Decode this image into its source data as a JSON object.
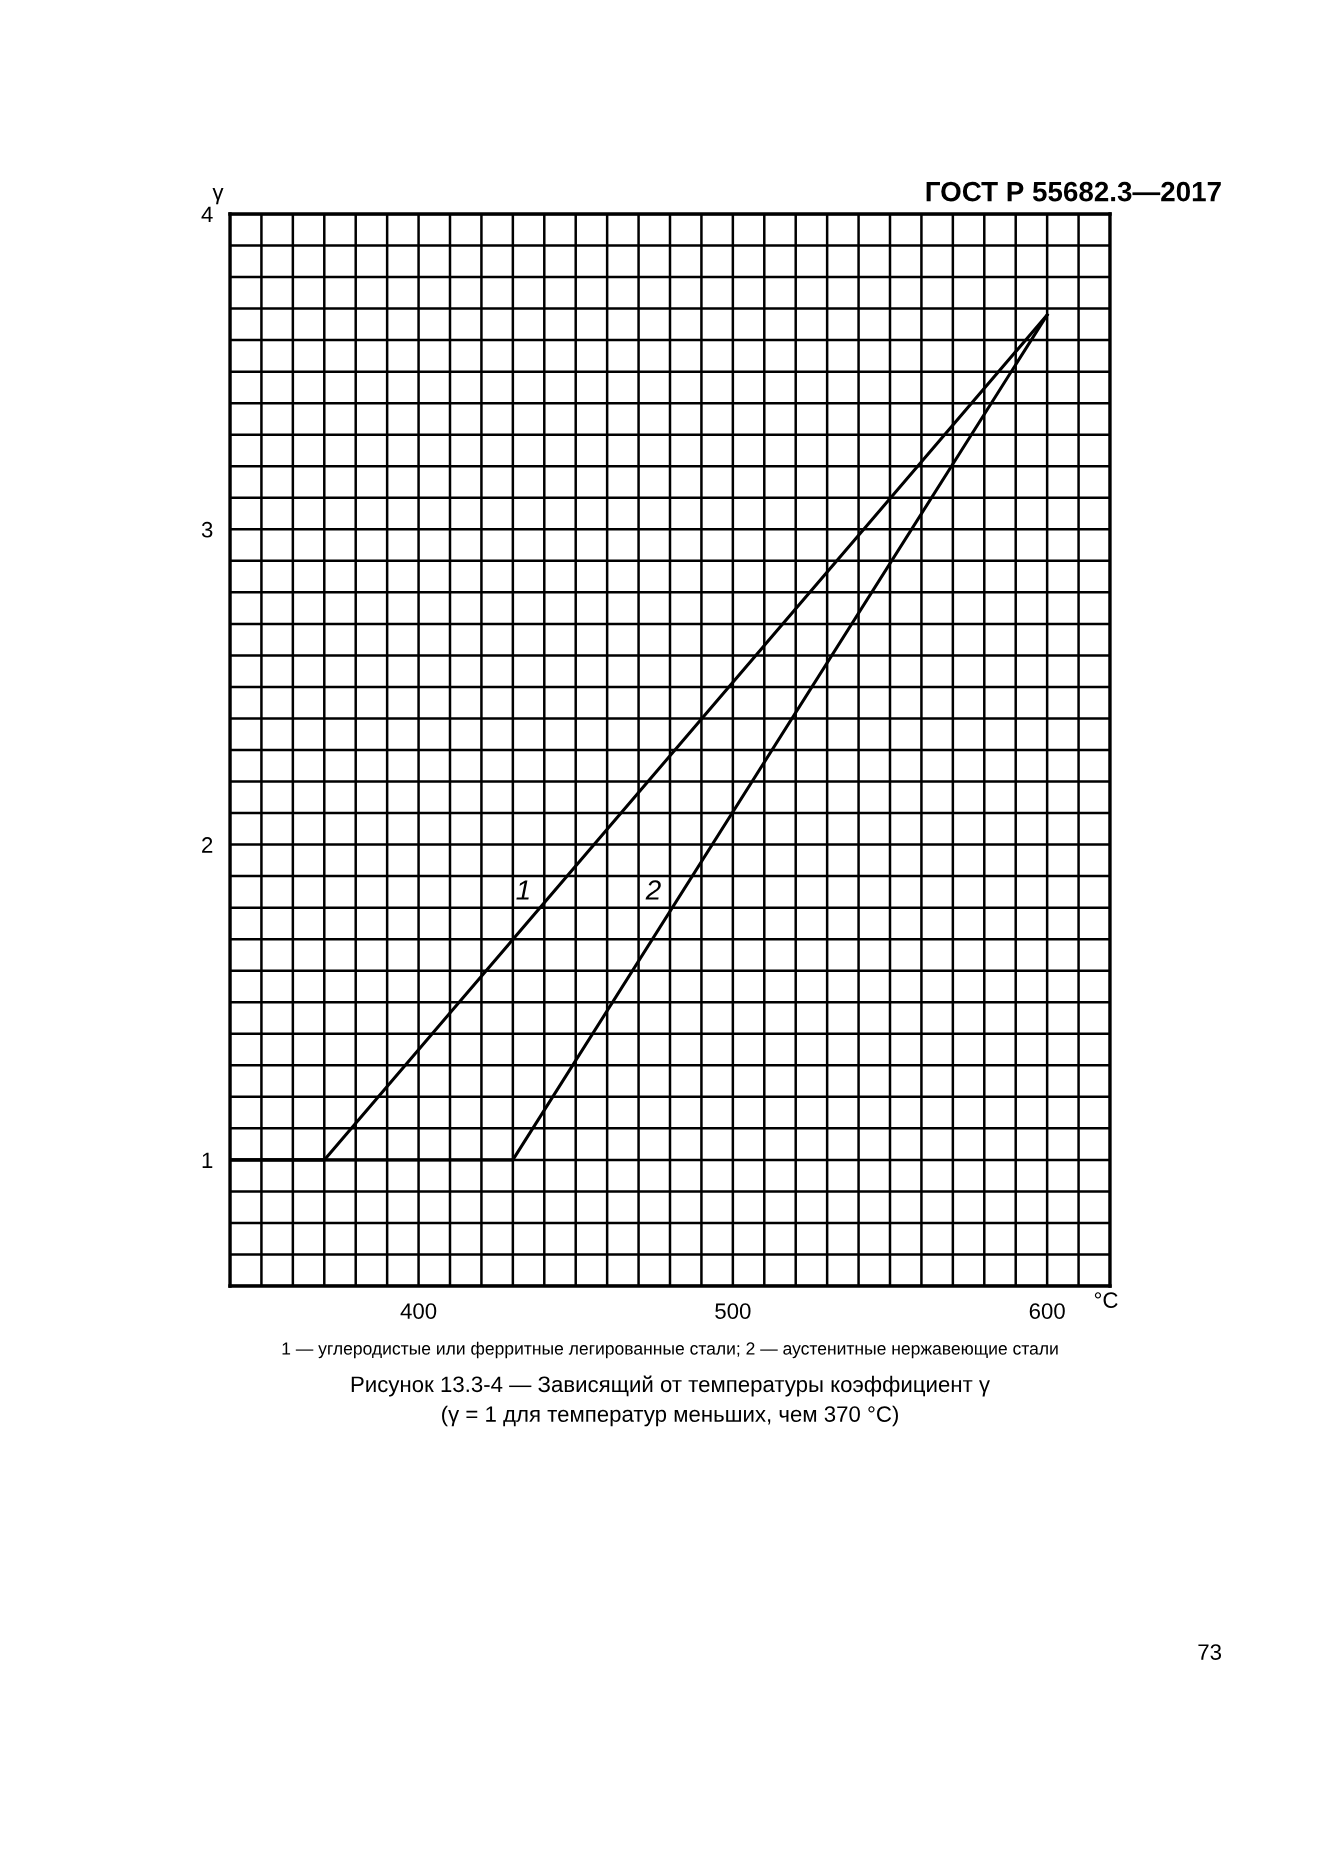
{
  "chart_data": {
    "type": "line",
    "title": "Рисунок 13.3-4 — Зависящий от температуры коэффициент γ",
    "subtitle": "(γ = 1 для температур меньших, чем 370 °C)",
    "xlabel": "°C",
    "ylabel": "γ",
    "series": [
      {
        "name": "1",
        "color": "#000000",
        "x": [
          340,
          370,
          600
        ],
        "values": [
          1,
          1,
          3.68
        ]
      },
      {
        "name": "2",
        "color": "#000000",
        "x": [
          340,
          430,
          600
        ],
        "values": [
          1,
          1,
          3.68
        ]
      }
    ],
    "xlim": [
      340,
      620
    ],
    "ylim": [
      0.6,
      4
    ],
    "xticks": [
      {
        "value": 340,
        "label": null
      },
      {
        "value": 350,
        "label": null
      },
      {
        "value": 360,
        "label": null
      },
      {
        "value": 370,
        "label": null
      },
      {
        "value": 380,
        "label": null
      },
      {
        "value": 390,
        "label": null
      },
      400,
      {
        "value": 410,
        "label": null
      },
      {
        "value": 420,
        "label": null
      },
      {
        "value": 430,
        "label": null
      },
      {
        "value": 440,
        "label": null
      },
      {
        "value": 450,
        "label": null
      },
      {
        "value": 460,
        "label": null
      },
      {
        "value": 470,
        "label": null
      },
      {
        "value": 480,
        "label": null
      },
      {
        "value": 490,
        "label": null
      },
      500,
      {
        "value": 510,
        "label": null
      },
      {
        "value": 520,
        "label": null
      },
      {
        "value": 530,
        "label": null
      },
      {
        "value": 540,
        "label": null
      },
      {
        "value": 550,
        "label": null
      },
      {
        "value": 560,
        "label": null
      },
      {
        "value": 570,
        "label": null
      },
      {
        "value": 580,
        "label": null
      },
      {
        "value": 590,
        "label": null
      },
      600,
      {
        "value": 610,
        "label": null
      },
      {
        "value": 620,
        "label": null
      }
    ],
    "yticks": [
      {
        "value": 0.6,
        "label": null
      },
      {
        "value": 0.7,
        "label": null
      },
      {
        "value": 0.8,
        "label": null
      },
      {
        "value": 0.9,
        "label": null
      },
      1,
      {
        "value": 1.1,
        "label": null
      },
      {
        "value": 1.2,
        "label": null
      },
      {
        "value": 1.3,
        "label": null
      },
      {
        "value": 1.4,
        "label": null
      },
      {
        "value": 1.5,
        "label": null
      },
      {
        "value": 1.6,
        "label": null
      },
      {
        "value": 1.7,
        "label": null
      },
      {
        "value": 1.8,
        "label": null
      },
      {
        "value": 1.9,
        "label": null
      },
      2,
      {
        "value": 2.1,
        "label": null
      },
      {
        "value": 2.2,
        "label": null
      },
      {
        "value": 2.3,
        "label": null
      },
      {
        "value": 2.4,
        "label": null
      },
      {
        "value": 2.5,
        "label": null
      },
      {
        "value": 2.6,
        "label": null
      },
      {
        "value": 2.7,
        "label": null
      },
      {
        "value": 2.8,
        "label": null
      },
      {
        "value": 2.9,
        "label": null
      },
      3,
      {
        "value": 3.1,
        "label": null
      },
      {
        "value": 3.2,
        "label": null
      },
      {
        "value": 3.3,
        "label": null
      },
      {
        "value": 3.4,
        "label": null
      },
      {
        "value": 3.5,
        "label": null
      },
      {
        "value": 3.6,
        "label": null
      },
      {
        "value": 3.7,
        "label": null
      },
      {
        "value": 3.8,
        "label": null
      },
      {
        "value": 3.9,
        "label": null
      },
      4
    ],
    "grid": true,
    "marker": "none",
    "line_style": "solid",
    "annotations": [
      "ГОСТ Р 55682.3—2017",
      "1 — углеродистые или ферритные легированные стали; 2 — аустенитные нержавеющие стали",
      "73"
    ]
  }
}
